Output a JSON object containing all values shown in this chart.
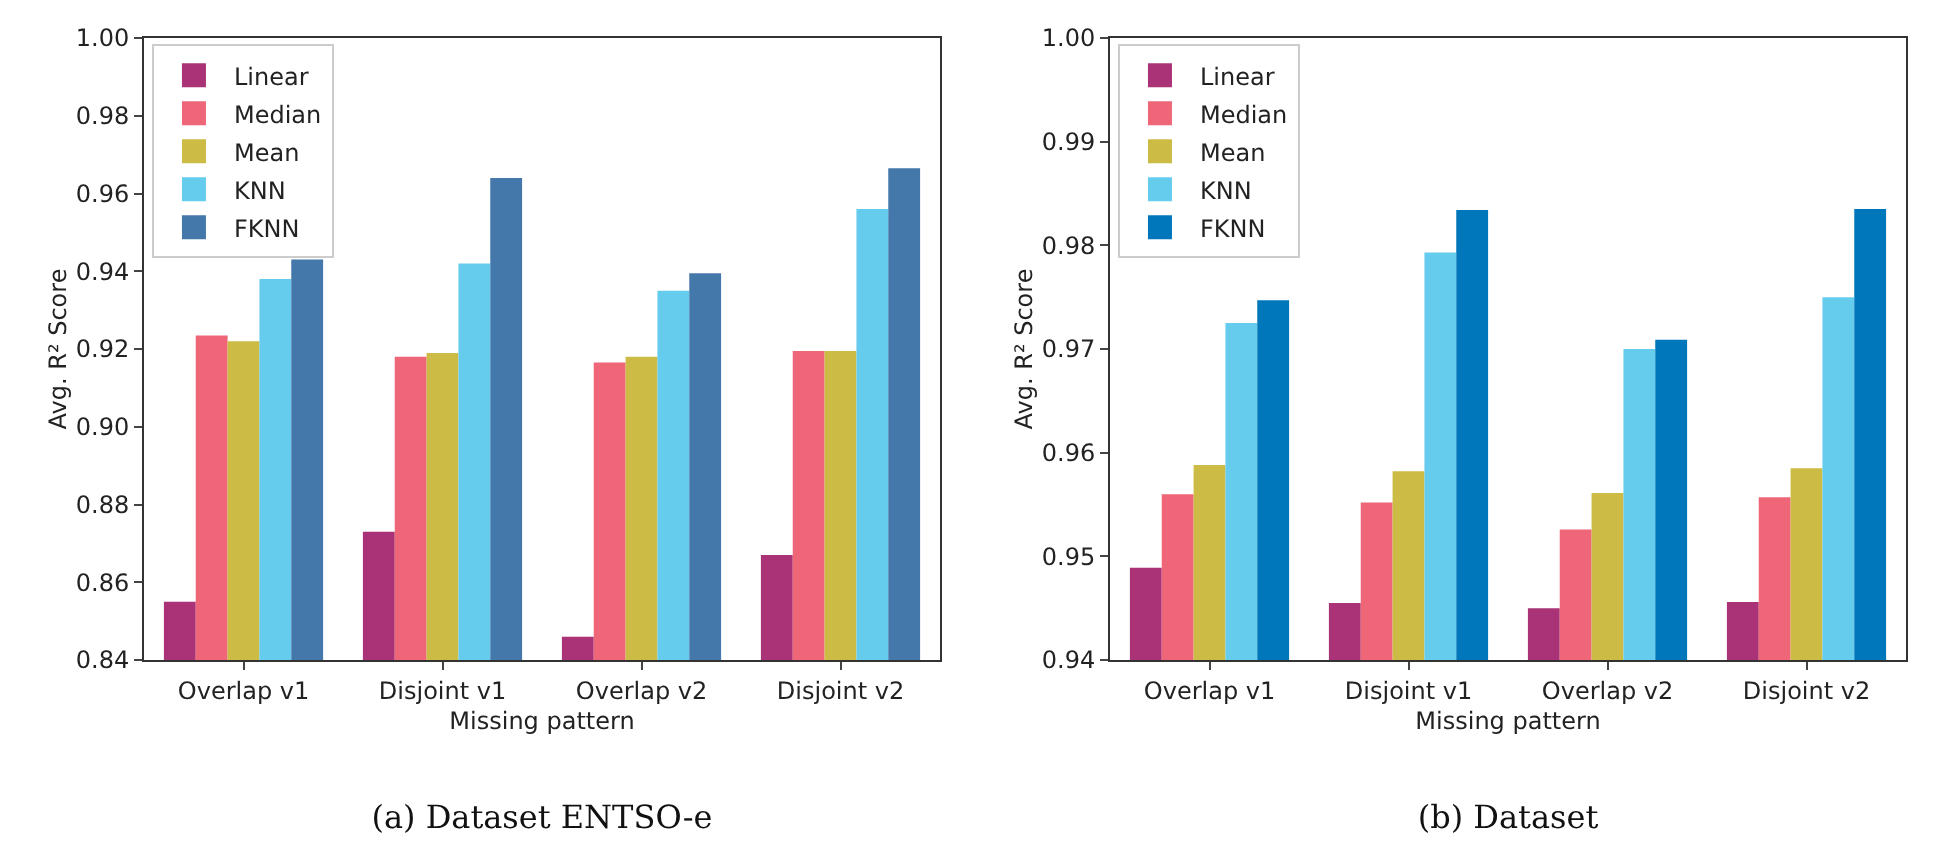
{
  "chart_data": [
    {
      "type": "bar",
      "title": "(a) Dataset ENTSO-e",
      "xlabel": "Missing pattern",
      "ylabel": "Avg. R² Score",
      "categories": [
        "Overlap v1",
        "Disjoint v1",
        "Overlap v2",
        "Disjoint v2"
      ],
      "series": [
        {
          "name": "Linear",
          "color": "#aa3377",
          "values": [
            0.855,
            0.873,
            0.846,
            0.867
          ]
        },
        {
          "name": "Median",
          "color": "#ee6677",
          "values": [
            0.9235,
            0.918,
            0.9165,
            0.9195
          ]
        },
        {
          "name": "Mean",
          "color": "#ccbb44",
          "values": [
            0.922,
            0.919,
            0.918,
            0.9195
          ]
        },
        {
          "name": "KNN",
          "color": "#66ccee",
          "values": [
            0.938,
            0.942,
            0.935,
            0.956
          ]
        },
        {
          "name": "FKNN",
          "color": "#4477aa",
          "values": [
            0.943,
            0.964,
            0.9395,
            0.9665
          ]
        }
      ],
      "ylim": [
        0.84,
        1.0
      ],
      "yticks": [
        {
          "value": 0.84,
          "label": "0.84"
        },
        {
          "value": 0.86,
          "label": "0.86"
        },
        {
          "value": 0.88,
          "label": "0.88"
        },
        {
          "value": 0.9,
          "label": "0.90"
        },
        {
          "value": 0.92,
          "label": "0.92"
        },
        {
          "value": 0.94,
          "label": "0.94"
        },
        {
          "value": 0.96,
          "label": "0.96"
        },
        {
          "value": 0.98,
          "label": "0.98"
        },
        {
          "value": 1.0,
          "label": "1.00"
        }
      ],
      "legend": "top left",
      "grid": false
    },
    {
      "type": "bar",
      "title": "(b) Dataset",
      "xlabel": "Missing pattern",
      "ylabel": "Avg. R² Score",
      "categories": [
        "Overlap v1",
        "Disjoint v1",
        "Overlap v2",
        "Disjoint v2"
      ],
      "series": [
        {
          "name": "Linear",
          "color": "#aa3377",
          "values": [
            0.9489,
            0.9455,
            0.945,
            0.9456
          ]
        },
        {
          "name": "Median",
          "color": "#ee6677",
          "values": [
            0.956,
            0.9552,
            0.9526,
            0.9557
          ]
        },
        {
          "name": "Mean",
          "color": "#ccbb44",
          "values": [
            0.9588,
            0.9582,
            0.9561,
            0.9585
          ]
        },
        {
          "name": "KNN",
          "color": "#66ccee",
          "values": [
            0.9725,
            0.9793,
            0.97,
            0.975
          ]
        },
        {
          "name": "FKNN",
          "color": "#0077bb",
          "values": [
            0.9747,
            0.9834,
            0.9709,
            0.9835
          ]
        }
      ],
      "ylim": [
        0.94,
        1.0
      ],
      "yticks": [
        {
          "value": 0.94,
          "label": "0.94"
        },
        {
          "value": 0.95,
          "label": "0.95"
        },
        {
          "value": 0.96,
          "label": "0.96"
        },
        {
          "value": 0.97,
          "label": "0.97"
        },
        {
          "value": 0.98,
          "label": "0.98"
        },
        {
          "value": 0.99,
          "label": "0.99"
        },
        {
          "value": 1.0,
          "label": "1.00"
        }
      ],
      "legend": "top left",
      "grid": false
    }
  ]
}
